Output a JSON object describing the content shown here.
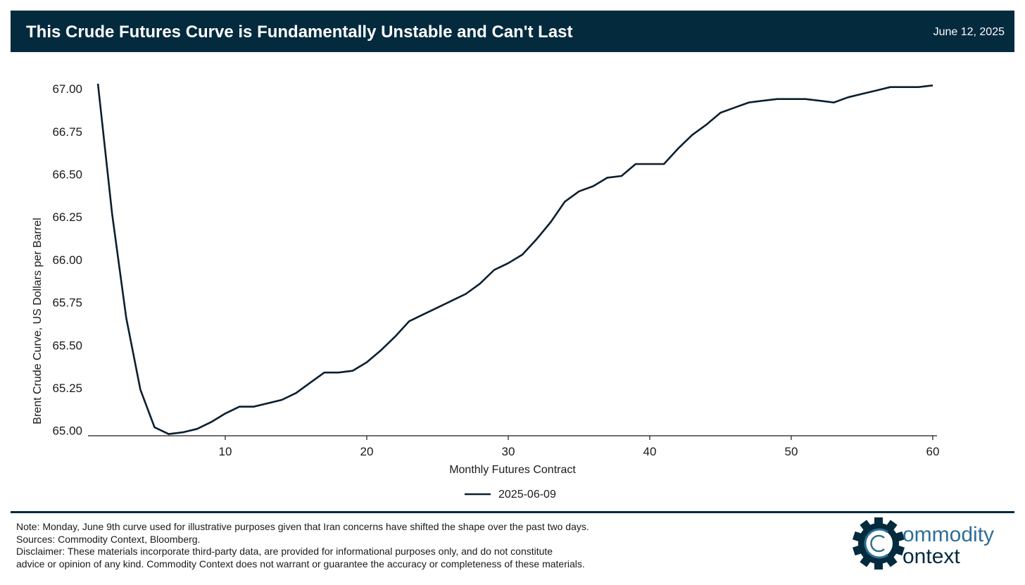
{
  "header": {
    "title": "This Crude Futures Curve is Fundamentally Unstable and Can't Last",
    "date": "June 12, 2025"
  },
  "colors": {
    "brand_navy": "#042a3e",
    "series_line": "#0b1f2e",
    "logo_light": "#2f6f96"
  },
  "chart_data": {
    "type": "line",
    "title": "",
    "xlabel": "Monthly Futures Contract",
    "ylabel": "Brent Crude Curve, US Dollars per Barrel",
    "xlim": [
      0.3,
      60.3
    ],
    "ylim": [
      64.97,
      67.05
    ],
    "xticks": [
      10,
      20,
      30,
      40,
      50,
      60
    ],
    "yticks": [
      "65.00",
      "65.25",
      "65.50",
      "65.75",
      "66.00",
      "66.25",
      "66.50",
      "66.75",
      "67.00"
    ],
    "grid": false,
    "legend": "bottom-center",
    "series": [
      {
        "name": "2025-06-09",
        "x": [
          1,
          2,
          3,
          4,
          5,
          6,
          7,
          8,
          9,
          10,
          11,
          12,
          13,
          14,
          15,
          16,
          17,
          18,
          19,
          20,
          21,
          22,
          23,
          24,
          25,
          26,
          27,
          28,
          29,
          30,
          31,
          32,
          33,
          34,
          35,
          36,
          37,
          38,
          39,
          40,
          41,
          42,
          43,
          44,
          45,
          46,
          47,
          48,
          49,
          50,
          51,
          52,
          53,
          54,
          55,
          56,
          57,
          58,
          59,
          60
        ],
        "values": [
          67.03,
          66.27,
          65.66,
          65.24,
          65.02,
          64.98,
          64.99,
          65.01,
          65.05,
          65.1,
          65.14,
          65.14,
          65.16,
          65.18,
          65.22,
          65.28,
          65.34,
          65.34,
          65.35,
          65.4,
          65.47,
          65.55,
          65.64,
          65.68,
          65.72,
          65.76,
          65.8,
          65.86,
          65.94,
          65.98,
          66.03,
          66.12,
          66.22,
          66.34,
          66.4,
          66.43,
          66.48,
          66.49,
          66.56,
          66.56,
          66.56,
          66.65,
          66.73,
          66.79,
          66.86,
          66.89,
          66.92,
          66.93,
          66.94,
          66.94,
          66.94,
          66.93,
          66.92,
          66.95,
          66.97,
          66.99,
          67.01,
          67.01,
          67.01,
          67.02
        ]
      }
    ]
  },
  "footer": {
    "note": "Note: Monday, June 9th curve used for illustrative purposes given that Iran concerns have shifted the shape over the past two days.",
    "sources": "Sources: Commodity Context, Bloomberg.",
    "disclaimer_1": "Disclaimer: These materials incorporate third-party data, are provided for informational purposes only, and do not constitute",
    "disclaimer_2": "advice or opinion of any kind. Commodity Context does not warrant or guarantee the accuracy or completeness of these materials."
  },
  "logo": {
    "line1": "ommodity",
    "line2": "ontext"
  }
}
